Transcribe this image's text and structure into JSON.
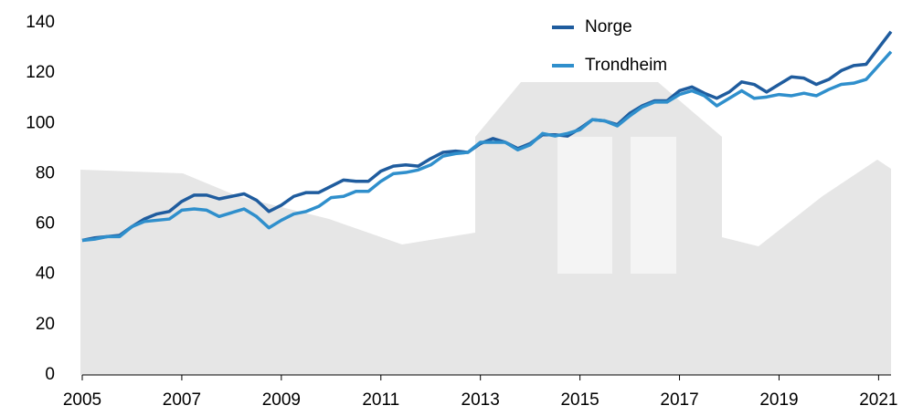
{
  "chart_data": {
    "type": "line",
    "x": [
      2005,
      2005.25,
      2005.5,
      2005.75,
      2006,
      2006.25,
      2006.5,
      2006.75,
      2007,
      2007.25,
      2007.5,
      2007.75,
      2008,
      2008.25,
      2008.5,
      2008.75,
      2009,
      2009.25,
      2009.5,
      2009.75,
      2010,
      2010.25,
      2010.5,
      2010.75,
      2011,
      2011.25,
      2011.5,
      2011.75,
      2012,
      2012.25,
      2012.5,
      2012.75,
      2013,
      2013.25,
      2013.5,
      2013.75,
      2014,
      2014.25,
      2014.5,
      2014.75,
      2015,
      2015.25,
      2015.5,
      2015.75,
      2016,
      2016.25,
      2016.5,
      2016.75,
      2017,
      2017.25,
      2017.5,
      2017.75,
      2018,
      2018.25,
      2018.5,
      2018.75,
      2019,
      2019.25,
      2019.5,
      2019.75,
      2020,
      2020.25,
      2020.5,
      2020.75,
      2021,
      2021.25
    ],
    "series": [
      {
        "name": "Norge",
        "color": "#1f5c9e",
        "values": [
          53.5,
          54.5,
          55,
          55.5,
          59,
          62,
          64,
          65,
          69,
          71.5,
          71.5,
          70,
          71,
          72,
          69.5,
          65,
          67.5,
          71,
          72.5,
          72.5,
          75,
          77.5,
          77,
          77,
          81,
          83,
          83.5,
          83,
          86,
          88.5,
          89,
          88.5,
          92,
          94,
          92.5,
          90,
          92,
          95.5,
          95.5,
          95,
          98,
          101.5,
          101,
          99.5,
          104,
          107,
          109,
          109,
          113,
          114.5,
          112,
          110,
          112.5,
          116.5,
          115.5,
          112.5,
          115.5,
          118.5,
          118,
          115.5,
          117.5,
          121,
          123,
          123.5,
          130,
          136.5
        ]
      },
      {
        "name": "Trondheim",
        "color": "#2f8fcc",
        "values": [
          53.5,
          54,
          55,
          55,
          59,
          61,
          61.5,
          62,
          65.5,
          66,
          65.5,
          63,
          64.5,
          66,
          63,
          58.5,
          61.5,
          64,
          65,
          67,
          70.5,
          71,
          73,
          73,
          77,
          80,
          80.5,
          81.5,
          83.5,
          87,
          88,
          88.5,
          92.5,
          92.5,
          92.5,
          89.5,
          91.5,
          96,
          95,
          96,
          97.5,
          101.5,
          101,
          99,
          103,
          106.5,
          108.5,
          108.5,
          111.5,
          113,
          111,
          107,
          110,
          113,
          110,
          110.5,
          111.5,
          111,
          112,
          111,
          113.5,
          115.5,
          116,
          117.5,
          123,
          128.5
        ]
      }
    ],
    "xlim": [
      2005,
      2021.25
    ],
    "xticks": [
      2005,
      2007,
      2009,
      2011,
      2013,
      2015,
      2017,
      2019,
      2021
    ],
    "ylim": [
      0,
      140
    ],
    "yticks": [
      0,
      20,
      40,
      60,
      80,
      100,
      120,
      140
    ],
    "legend": "top-right"
  }
}
